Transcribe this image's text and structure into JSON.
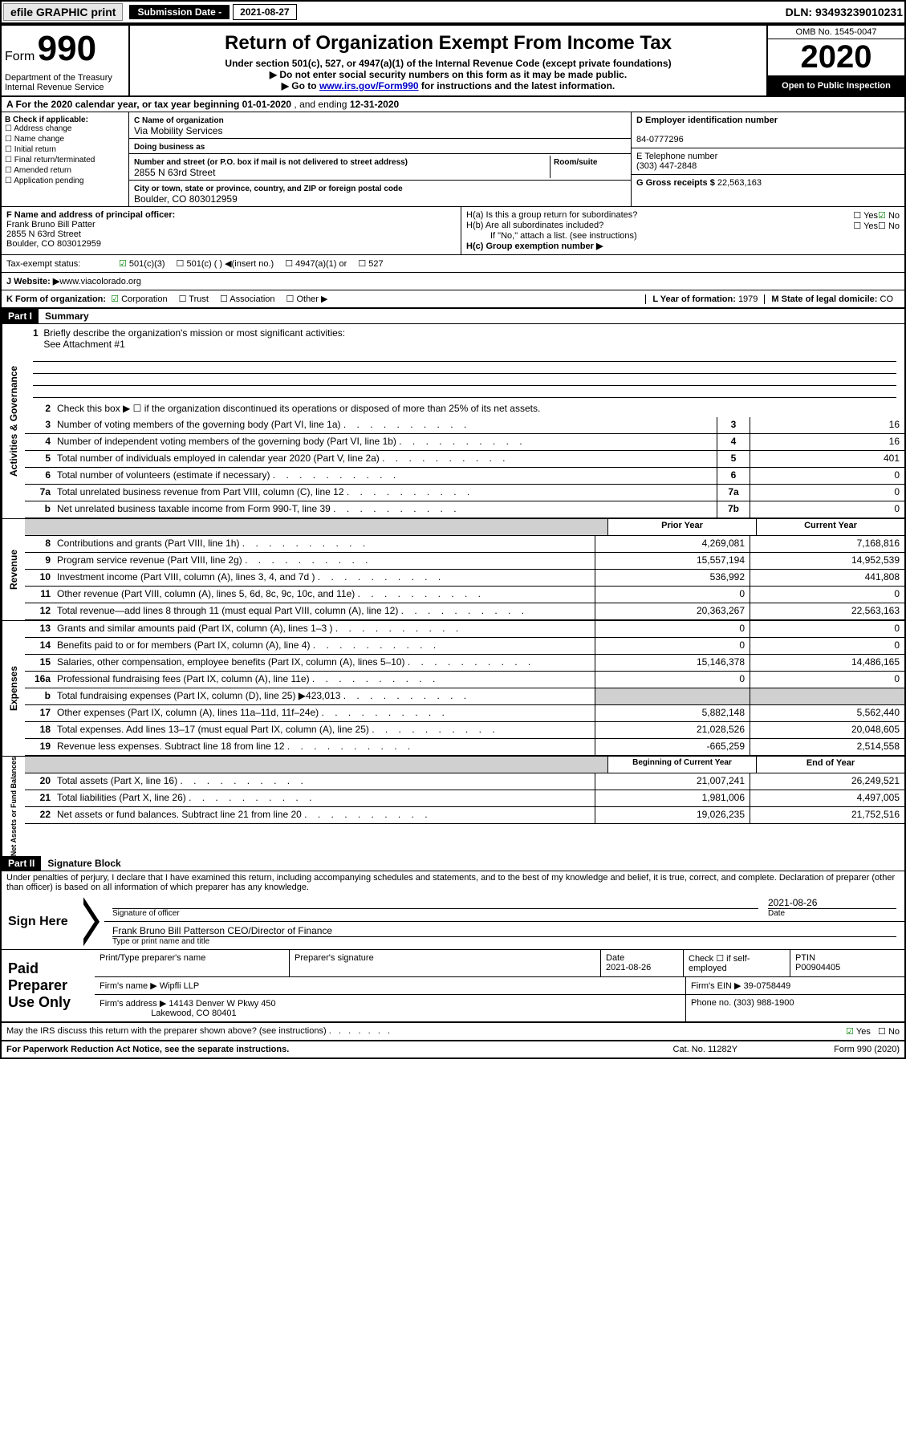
{
  "topbar": {
    "efile_btn": "efile GRAPHIC print",
    "sub_date_label": "Submission Date - ",
    "sub_date_val": "2021-08-27",
    "dln": "DLN: 93493239010231"
  },
  "header": {
    "form_prefix": "Form",
    "form_no": "990",
    "dept": "Department of the Treasury\nInternal Revenue Service",
    "title": "Return of Organization Exempt From Income Tax",
    "subtitle": "Under section 501(c), 527, or 4947(a)(1) of the Internal Revenue Code (except private foundations)",
    "note1": "▶ Do not enter social security numbers on this form as it may be made public.",
    "note2_pre": "▶ Go to ",
    "note2_link": "www.irs.gov/Form990",
    "note2_post": " for instructions and the latest information.",
    "omb": "OMB No. 1545-0047",
    "year": "2020",
    "open": "Open to Public Inspection"
  },
  "lineA": {
    "text_pre": "A For the 2020 calendar year, or tax year beginning ",
    "begin": "01-01-2020",
    "text_mid": " , and ending ",
    "end": "12-31-2020"
  },
  "colB": {
    "header": "B Check if applicable:",
    "opts": [
      "Address change",
      "Name change",
      "Initial return",
      "Final return/terminated",
      "Amended return",
      "Application pending"
    ]
  },
  "colC": {
    "name_label": "C Name of organization",
    "name": "Via Mobility Services",
    "dba_label": "Doing business as",
    "addr_label": "Number and street (or P.O. box if mail is not delivered to street address)",
    "room_label": "Room/suite",
    "addr": "2855 N 63rd Street",
    "city_label": "City or town, state or province, country, and ZIP or foreign postal code",
    "city": "Boulder, CO  803012959"
  },
  "colDE": {
    "d_label": "D Employer identification number",
    "d_val": "84-0777296",
    "e_label": "E Telephone number",
    "e_val": "(303) 447-2848",
    "g_label": "G Gross receipts $ ",
    "g_val": "22,563,163"
  },
  "rowF": {
    "label": "F  Name and address of principal officer:",
    "name": "Frank Bruno Bill Patter",
    "addr1": "2855 N 63rd Street",
    "addr2": "Boulder, CO  803012959"
  },
  "rowH": {
    "a_label": "H(a)  Is this a group return for subordinates?",
    "b_label": "H(b)  Are all subordinates included?",
    "note": "If \"No,\" attach a list. (see instructions)",
    "c_label": "H(c)  Group exemption number ▶"
  },
  "rowI": {
    "label": "Tax-exempt status:",
    "opts": [
      "501(c)(3)",
      "501(c) (  ) ◀(insert no.)",
      "4947(a)(1) or",
      "527"
    ]
  },
  "rowJ": {
    "label": "J  Website: ▶ ",
    "val": "www.viacolorado.org"
  },
  "rowK": {
    "label": "K Form of organization:",
    "opts": [
      "Corporation",
      "Trust",
      "Association",
      "Other ▶"
    ],
    "l_label": "L Year of formation: ",
    "l_val": "1979",
    "m_label": "M State of legal domicile: ",
    "m_val": "CO"
  },
  "partI": {
    "header": "Part I",
    "title": "Summary",
    "mission_label": "Briefly describe the organization's mission or most significant activities:",
    "mission": "See Attachment #1",
    "line2": "Check this box ▶ ☐ if the organization discontinued its operations or disposed of more than 25% of its net assets."
  },
  "sections": {
    "gov": "Activities & Governance",
    "rev": "Revenue",
    "exp": "Expenses",
    "net": "Net Assets or Fund Balances"
  },
  "gov_rows": [
    {
      "n": "3",
      "label": "Number of voting members of the governing body (Part VI, line 1a)",
      "ln": "3",
      "val": "16"
    },
    {
      "n": "4",
      "label": "Number of independent voting members of the governing body (Part VI, line 1b)",
      "ln": "4",
      "val": "16"
    },
    {
      "n": "5",
      "label": "Total number of individuals employed in calendar year 2020 (Part V, line 2a)",
      "ln": "5",
      "val": "401"
    },
    {
      "n": "6",
      "label": "Total number of volunteers (estimate if necessary)",
      "ln": "6",
      "val": "0"
    },
    {
      "n": "7a",
      "label": "Total unrelated business revenue from Part VIII, column (C), line 12",
      "ln": "7a",
      "val": "0"
    },
    {
      "n": "b",
      "label": "Net unrelated business taxable income from Form 990-T, line 39",
      "ln": "7b",
      "val": "0"
    }
  ],
  "two_col_head": {
    "prior": "Prior Year",
    "current": "Current Year",
    "beg": "Beginning of Current Year",
    "end": "End of Year"
  },
  "rev_rows": [
    {
      "n": "8",
      "label": "Contributions and grants (Part VIII, line 1h)",
      "p": "4,269,081",
      "c": "7,168,816"
    },
    {
      "n": "9",
      "label": "Program service revenue (Part VIII, line 2g)",
      "p": "15,557,194",
      "c": "14,952,539"
    },
    {
      "n": "10",
      "label": "Investment income (Part VIII, column (A), lines 3, 4, and 7d )",
      "p": "536,992",
      "c": "441,808"
    },
    {
      "n": "11",
      "label": "Other revenue (Part VIII, column (A), lines 5, 6d, 8c, 9c, 10c, and 11e)",
      "p": "0",
      "c": "0"
    },
    {
      "n": "12",
      "label": "Total revenue—add lines 8 through 11 (must equal Part VIII, column (A), line 12)",
      "p": "20,363,267",
      "c": "22,563,163"
    }
  ],
  "exp_rows": [
    {
      "n": "13",
      "label": "Grants and similar amounts paid (Part IX, column (A), lines 1–3 )",
      "p": "0",
      "c": "0"
    },
    {
      "n": "14",
      "label": "Benefits paid to or for members (Part IX, column (A), line 4)",
      "p": "0",
      "c": "0"
    },
    {
      "n": "15",
      "label": "Salaries, other compensation, employee benefits (Part IX, column (A), lines 5–10)",
      "p": "15,146,378",
      "c": "14,486,165"
    },
    {
      "n": "16a",
      "label": "Professional fundraising fees (Part IX, column (A), line 11e)",
      "p": "0",
      "c": "0"
    },
    {
      "n": "b",
      "label": "Total fundraising expenses (Part IX, column (D), line 25) ▶423,013",
      "p": "",
      "c": "",
      "grey": true
    },
    {
      "n": "17",
      "label": "Other expenses (Part IX, column (A), lines 11a–11d, 11f–24e)",
      "p": "5,882,148",
      "c": "5,562,440"
    },
    {
      "n": "18",
      "label": "Total expenses. Add lines 13–17 (must equal Part IX, column (A), line 25)",
      "p": "21,028,526",
      "c": "20,048,605"
    },
    {
      "n": "19",
      "label": "Revenue less expenses. Subtract line 18 from line 12",
      "p": "-665,259",
      "c": "2,514,558"
    }
  ],
  "net_rows": [
    {
      "n": "20",
      "label": "Total assets (Part X, line 16)",
      "p": "21,007,241",
      "c": "26,249,521"
    },
    {
      "n": "21",
      "label": "Total liabilities (Part X, line 26)",
      "p": "1,981,006",
      "c": "4,497,005"
    },
    {
      "n": "22",
      "label": "Net assets or fund balances. Subtract line 21 from line 20",
      "p": "19,026,235",
      "c": "21,752,516"
    }
  ],
  "partII": {
    "header": "Part II",
    "title": "Signature Block",
    "perjury": "Under penalties of perjury, I declare that I have examined this return, including accompanying schedules and statements, and to the best of my knowledge and belief, it is true, correct, and complete. Declaration of preparer (other than officer) is based on all information of which preparer has any knowledge."
  },
  "sign": {
    "here": "Sign Here",
    "sig_officer": "Signature of officer",
    "date": "2021-08-26",
    "date_label": "Date",
    "name": "Frank Bruno Bill Patterson  CEO/Director of Finance",
    "name_label": "Type or print name and title"
  },
  "prep": {
    "label": "Paid Preparer Use Only",
    "h_print": "Print/Type preparer's name",
    "h_sig": "Preparer's signature",
    "h_date": "Date",
    "date_val": "2021-08-26",
    "h_check": "Check ☐ if self-employed",
    "h_ptin": "PTIN",
    "ptin": "P00904405",
    "firm_name_label": "Firm's name     ▶ ",
    "firm_name": "Wipfli LLP",
    "firm_ein_label": "Firm's EIN ▶ ",
    "firm_ein": "39-0758449",
    "firm_addr_label": "Firm's address ▶ ",
    "firm_addr1": "14143 Denver W Pkwy 450",
    "firm_addr2": "Lakewood, CO  80401",
    "phone_label": "Phone no. ",
    "phone": "(303) 988-1900"
  },
  "discuss": {
    "label": "May the IRS discuss this return with the preparer shown above? (see instructions)",
    "yes": "Yes",
    "no": "No"
  },
  "footer": {
    "left": "For Paperwork Reduction Act Notice, see the separate instructions.",
    "mid": "Cat. No. 11282Y",
    "right": "Form 990 (2020)"
  }
}
